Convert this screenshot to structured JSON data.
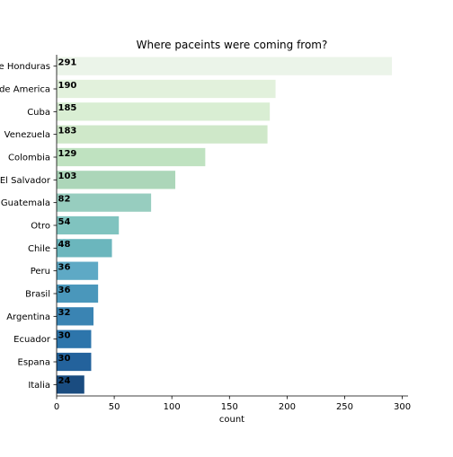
{
  "chart_data": {
    "type": "bar",
    "orientation": "horizontal",
    "title": "Where paceints were coming from?",
    "xlabel": "count",
    "ylabel": "",
    "xlim": [
      0,
      305
    ],
    "xticks": [
      0,
      50,
      100,
      150,
      200,
      250,
      300
    ],
    "grid": false,
    "categories": [
      "Republica de Honduras",
      "Estados Unidos de America",
      "Cuba",
      "Venezuela",
      "Colombia",
      "El Salvador",
      "Guatemala",
      "Otro",
      "Chile",
      "Peru",
      "Brasil",
      "Argentina",
      "Ecuador",
      "Espana",
      "Italia"
    ],
    "values": [
      291,
      190,
      185,
      183,
      129,
      103,
      82,
      54,
      48,
      36,
      36,
      32,
      30,
      30,
      24
    ],
    "colors": [
      "#ebf4e9",
      "#e2f1dc",
      "#d9eed3",
      "#cfe8c9",
      "#bfe2c0",
      "#acd6b9",
      "#97cdbf",
      "#80c3bf",
      "#6bb6bd",
      "#5ea9c5",
      "#4a97bb",
      "#3a84b3",
      "#2d75ab",
      "#23629c",
      "#1a4c80"
    ]
  }
}
